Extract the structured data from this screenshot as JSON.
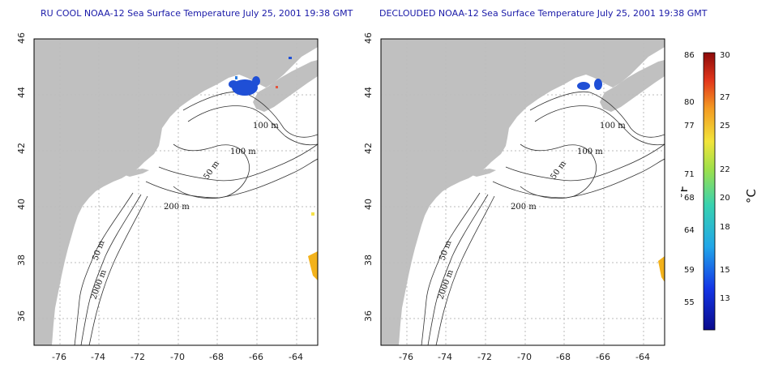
{
  "colors": {
    "land": "#c0c0c0",
    "ocean": "#ffffff",
    "grid": "#bbbbbb",
    "title": "#1a1aa8",
    "cold_patch": "#1f4fd6",
    "warm_patch": "#f3b21b"
  },
  "maps": [
    {
      "title": "RU COOL NOAA-12 Sea Surface Temperature July 25, 2001 19:38 GMT",
      "x_ticks": [
        "-76",
        "-74",
        "-72",
        "-70",
        "-68",
        "-66",
        "-64"
      ],
      "y_ticks": [
        "36",
        "38",
        "40",
        "42",
        "44",
        "46"
      ],
      "contour_labels": [
        "100 m",
        "100 m",
        "50 m",
        "200 m",
        "50 m",
        "2000 m"
      ]
    },
    {
      "title": "DECLOUDED NOAA-12 Sea Surface Temperature July 25, 2001 19:38 GMT",
      "x_ticks": [
        "-76",
        "-74",
        "-72",
        "-70",
        "-68",
        "-66",
        "-64"
      ],
      "y_ticks": [
        "36",
        "38",
        "40",
        "42",
        "44",
        "46"
      ],
      "contour_labels": [
        "100 m",
        "100 m",
        "50 m",
        "200 m",
        "50 m",
        "2000 m"
      ]
    }
  ],
  "colorbar": {
    "fahrenheit_ticks": [
      "86",
      "80",
      "77",
      "71",
      "68",
      "64",
      "59",
      "55"
    ],
    "celsius_ticks": [
      "30",
      "27",
      "25",
      "22",
      "20",
      "18",
      "15",
      "13"
    ],
    "fahrenheit_unit": "°F",
    "celsius_unit": "°C"
  }
}
